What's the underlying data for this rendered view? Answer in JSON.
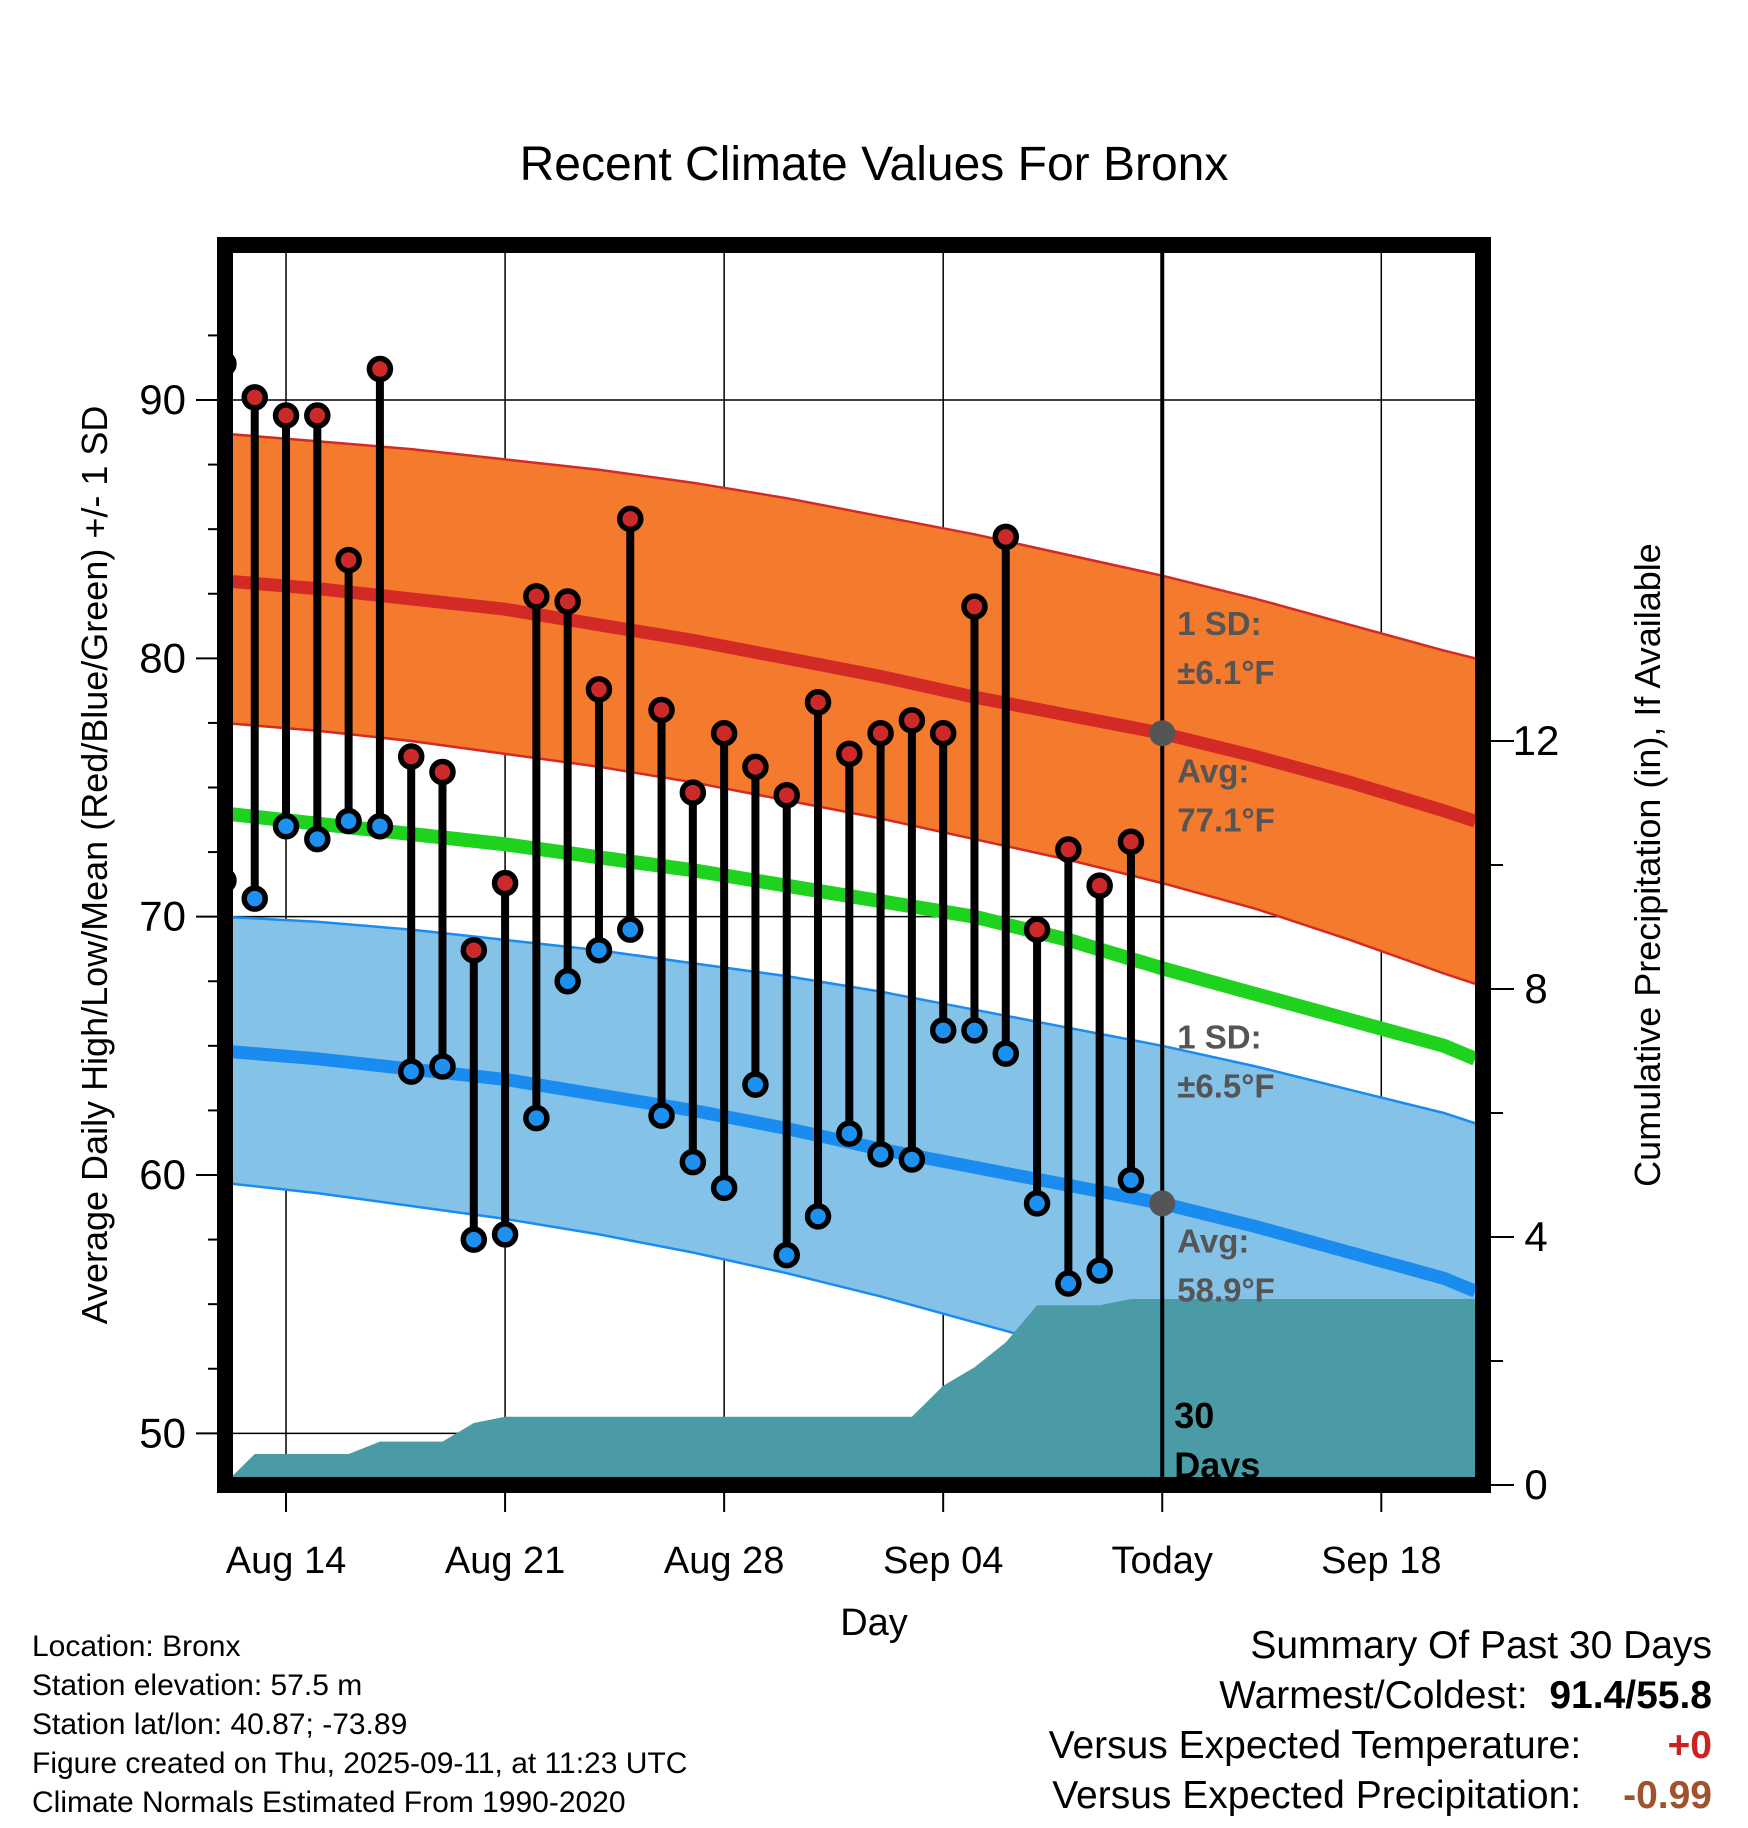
{
  "chart_data": {
    "type": "line",
    "title": "Recent Climate Values For Bronx",
    "xlabel": "Day",
    "ylabel_left": "Average Daily High/Low/Mean (Red/Blue/Green) +/- 1 SD",
    "ylabel_right": "Cumulative Precipitation (in), If Available",
    "ylim_left": [
      48,
      96
    ],
    "ylim_right": [
      0,
      20
    ],
    "x_range": [
      "Aug 12",
      "Sep 21"
    ],
    "x_ticks": [
      {
        "date": "Aug 14",
        "label": "Aug 14"
      },
      {
        "date": "Aug 21",
        "label": "Aug 21"
      },
      {
        "date": "Aug 28",
        "label": "Aug 28"
      },
      {
        "date": "Sep 04",
        "label": "Sep 04"
      },
      {
        "date": "Sep 11",
        "label": "Today"
      },
      {
        "date": "Sep 18",
        "label": "Sep 18"
      }
    ],
    "y_ticks_left": [
      50,
      60,
      70,
      80,
      90
    ],
    "y_ticks_right": [
      0,
      4,
      8,
      12
    ],
    "today": "Sep 11",
    "normals": {
      "dates": [
        "Aug 12",
        "Aug 15",
        "Aug 18",
        "Aug 21",
        "Aug 24",
        "Aug 27",
        "Aug 30",
        "Sep 02",
        "Sep 05",
        "Sep 08",
        "Sep 11",
        "Sep 14",
        "Sep 17",
        "Sep 20",
        "Sep 21"
      ],
      "high_avg": [
        83.0,
        82.7,
        82.3,
        81.9,
        81.3,
        80.7,
        80.0,
        79.3,
        78.5,
        77.8,
        77.1,
        76.2,
        75.2,
        74.1,
        73.7
      ],
      "high_upper": [
        88.7,
        88.4,
        88.1,
        87.7,
        87.3,
        86.8,
        86.2,
        85.5,
        84.8,
        84.0,
        83.2,
        82.3,
        81.3,
        80.3,
        80.0
      ],
      "high_lower": [
        77.5,
        77.2,
        76.8,
        76.3,
        75.8,
        75.2,
        74.5,
        73.8,
        73.0,
        72.2,
        71.3,
        70.3,
        69.1,
        67.8,
        67.4
      ],
      "mean": [
        74.0,
        73.6,
        73.2,
        72.8,
        72.3,
        71.8,
        71.2,
        70.6,
        70.0,
        69.1,
        68.0,
        67.0,
        66.0,
        65.0,
        64.5
      ],
      "low_avg": [
        64.8,
        64.5,
        64.1,
        63.7,
        63.1,
        62.5,
        61.8,
        61.0,
        60.3,
        59.6,
        58.9,
        58.0,
        57.0,
        56.0,
        55.5
      ],
      "low_upper": [
        70.0,
        69.8,
        69.5,
        69.1,
        68.7,
        68.2,
        67.7,
        67.1,
        66.4,
        65.7,
        65.0,
        64.2,
        63.3,
        62.4,
        62.0
      ],
      "low_lower": [
        59.7,
        59.3,
        58.8,
        58.3,
        57.7,
        57.0,
        56.2,
        55.3,
        54.3,
        53.3,
        52.6,
        51.7,
        50.8,
        49.8,
        49.4
      ]
    },
    "daily": {
      "dates": [
        "Aug 12",
        "Aug 13",
        "Aug 14",
        "Aug 15",
        "Aug 16",
        "Aug 17",
        "Aug 18",
        "Aug 19",
        "Aug 20",
        "Aug 21",
        "Aug 22",
        "Aug 23",
        "Aug 24",
        "Aug 25",
        "Aug 26",
        "Aug 27",
        "Aug 28",
        "Aug 29",
        "Aug 30",
        "Aug 31",
        "Sep 01",
        "Sep 02",
        "Sep 03",
        "Sep 04",
        "Sep 05",
        "Sep 06",
        "Sep 07",
        "Sep 08",
        "Sep 09",
        "Sep 10"
      ],
      "high": [
        91.4,
        90.1,
        89.4,
        89.4,
        83.8,
        91.2,
        76.2,
        75.6,
        68.7,
        71.3,
        82.4,
        82.2,
        78.8,
        85.4,
        78.0,
        74.8,
        77.1,
        75.8,
        74.7,
        78.3,
        76.3,
        77.1,
        77.6,
        77.1,
        82.0,
        84.7,
        69.5,
        72.6,
        71.2,
        72.9
      ],
      "low": [
        71.4,
        70.7,
        73.5,
        73.0,
        73.7,
        73.5,
        64.0,
        64.2,
        57.5,
        57.7,
        62.2,
        67.5,
        68.7,
        69.5,
        62.3,
        60.5,
        59.5,
        63.5,
        56.9,
        58.4,
        61.6,
        60.8,
        60.6,
        65.6,
        65.6,
        64.7,
        58.9,
        55.8,
        56.3,
        59.8
      ]
    },
    "precip_cumulative": {
      "dates": [
        "Aug 12",
        "Aug 13",
        "Aug 15",
        "Aug 16",
        "Aug 17",
        "Aug 18",
        "Aug 19",
        "Aug 20",
        "Aug 21",
        "Aug 22",
        "Sep 02",
        "Sep 03",
        "Sep 04",
        "Sep 05",
        "Sep 06",
        "Sep 07",
        "Sep 08",
        "Sep 09",
        "Sep 10",
        "Sep 21"
      ],
      "values": [
        0,
        0.5,
        0.5,
        0.5,
        0.7,
        0.7,
        0.7,
        1.0,
        1.1,
        1.1,
        1.1,
        1.1,
        1.6,
        1.9,
        2.3,
        2.9,
        2.9,
        2.9,
        3.0,
        3.0
      ]
    },
    "annotations": {
      "high_sd": "1 SD:",
      "high_sd_value": "±6.1°F",
      "high_avg_label": "Avg:",
      "high_avg_value": "77.1°F",
      "low_sd": "1 SD:",
      "low_sd_value": "±6.5°F",
      "low_avg_label": "Avg:",
      "low_avg_value": "58.9°F",
      "days_count": "30",
      "days_word": "Days"
    },
    "colors": {
      "high_band": "#f47a2e",
      "high_line": "#d42a26",
      "high_marker": "#cc2a2a",
      "low_band": "#84c2e8",
      "low_line": "#1a8cf0",
      "low_marker": "#1e90f0",
      "mean_line": "#1ed21e",
      "precip": "#4a9ba5",
      "today_marker": "#555555",
      "annotation": "#555555"
    }
  },
  "footer": {
    "location": "Location: Bronx",
    "elevation": "Station elevation: 57.5 m",
    "latlon": "Station lat/lon: 40.87; -73.89",
    "created": "Figure created on Thu, 2025-09-11, at 11:23 UTC",
    "normals": "Climate Normals Estimated From 1990-2020"
  },
  "summary": {
    "title": "Summary Of Past 30 Days",
    "warm_cold_label": "Warmest/Coldest:",
    "warm_cold_value": "91.4/55.8",
    "temp_label": "Versus Expected Temperature:",
    "temp_value": "+0",
    "temp_color": "#cc2222",
    "precip_label": "Versus Expected Precipitation:",
    "precip_value": "-0.99",
    "precip_color": "#a0522d"
  }
}
